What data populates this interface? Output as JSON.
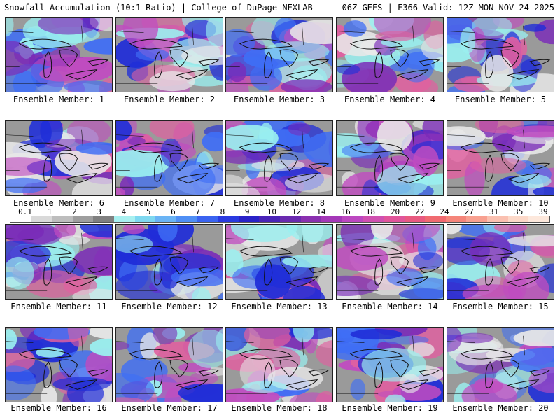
{
  "header": {
    "left": "Snowfall Accumulation (10:1 Ratio) | College of DuPage NEXLAB",
    "right": "06Z GEFS | F366 Valid: 12Z MON NOV 24 2025"
  },
  "members": [
    "Ensemble Member: 1",
    "Ensemble Member: 2",
    "Ensemble Member: 3",
    "Ensemble Member: 4",
    "Ensemble Member: 5",
    "Ensemble Member: 6",
    "Ensemble Member: 7",
    "Ensemble Member: 8",
    "Ensemble Member: 9",
    "Ensemble Member: 10",
    "Ensemble Member: 11",
    "Ensemble Member: 12",
    "Ensemble Member: 13",
    "Ensemble Member: 14",
    "Ensemble Member: 15",
    "Ensemble Member: 16",
    "Ensemble Member: 17",
    "Ensemble Member: 18",
    "Ensemble Member: 19",
    "Ensemble Member: 20"
  ],
  "legend": {
    "labels": [
      "0.1",
      "1",
      "2",
      "3",
      "4",
      "5",
      "6",
      "7",
      "8",
      "9",
      "10",
      "12",
      "14",
      "16",
      "18",
      "20",
      "22",
      "24",
      "27",
      "31",
      "35",
      "39"
    ],
    "colors": [
      "#ffffff",
      "#d9d9d9",
      "#bdbdbd",
      "#9e9e9e",
      "#808080",
      "#a8f0f0",
      "#7ed8f0",
      "#6ab4f5",
      "#4f8ff5",
      "#3a63f0",
      "#2a3ae0",
      "#2a22c8",
      "#4a24b8",
      "#6a2ab0",
      "#8a30b0",
      "#a438b8",
      "#bc48c0",
      "#d050b0",
      "#e0559a",
      "#e85a80",
      "#f06a70",
      "#f5857a",
      "#f8a090",
      "#fac0b0",
      "#fcd8c8",
      "#fde8dc"
    ],
    "map_colors": {
      "bg": "#9a9a9a",
      "land_light": "#e8e8e8",
      "cyan": "#9af0f0",
      "blue": "#3f6ef5",
      "deep_blue": "#1f2dd8",
      "purple": "#7a2ab8",
      "magenta": "#c04cc0",
      "pink": "#e060a0",
      "coast": "#111111"
    }
  }
}
